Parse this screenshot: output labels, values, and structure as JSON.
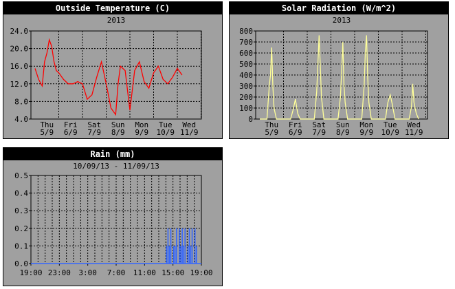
{
  "chart_data": [
    {
      "type": "line",
      "title": "Outside Temperature (C)",
      "subtitle": "2013",
      "ylim": [
        4.0,
        24.0
      ],
      "yticks": [
        "4.0",
        "8.0",
        "12.0",
        "16.0",
        "20.0",
        "24.0"
      ],
      "xticks": [
        {
          "day": "Thu",
          "date": "5/9"
        },
        {
          "day": "Fri",
          "date": "6/9"
        },
        {
          "day": "Sat",
          "date": "7/9"
        },
        {
          "day": "Sun",
          "date": "8/9"
        },
        {
          "day": "Mon",
          "date": "9/9"
        },
        {
          "day": "Tue",
          "date": "10/9"
        },
        {
          "day": "Wed",
          "date": "11/9"
        }
      ],
      "grid": true,
      "line_color": "#ff0000",
      "x": [
        0,
        0.15,
        0.3,
        0.4,
        0.5,
        0.6,
        0.7,
        0.8,
        0.9,
        1.0,
        1.2,
        1.4,
        1.6,
        1.8,
        2.0,
        2.2,
        2.4,
        2.6,
        2.8,
        3.0,
        3.2,
        3.4,
        3.5,
        3.6,
        3.8,
        4.0,
        4.2,
        4.4,
        4.6,
        4.8,
        5.0,
        5.2,
        5.4,
        5.6,
        5.8,
        6.0,
        6.2
      ],
      "values": [
        15.5,
        13.0,
        11.5,
        17.0,
        19.0,
        22.0,
        20.5,
        17.0,
        15.0,
        14.5,
        13.0,
        12.0,
        12.0,
        12.5,
        12.0,
        8.5,
        9.5,
        13.5,
        17.0,
        12.0,
        6.5,
        5.0,
        12.0,
        16.0,
        15.0,
        6.0,
        15.0,
        17.0,
        12.5,
        11.0,
        14.5,
        16.0,
        13.0,
        12.0,
        13.5,
        15.5,
        14.0
      ]
    },
    {
      "type": "line",
      "title": "Solar Radiation (W/m^2)",
      "subtitle": "2013",
      "ylim": [
        0,
        800
      ],
      "yticks": [
        "0",
        "100",
        "200",
        "300",
        "400",
        "500",
        "600",
        "700",
        "800"
      ],
      "xticks": [
        {
          "day": "Thu",
          "date": "5/9"
        },
        {
          "day": "Fri",
          "date": "6/9"
        },
        {
          "day": "Sat",
          "date": "7/9"
        },
        {
          "day": "Sun",
          "date": "8/9"
        },
        {
          "day": "Mon",
          "date": "9/9"
        },
        {
          "day": "Tue",
          "date": "10/9"
        },
        {
          "day": "Wed",
          "date": "11/9"
        }
      ],
      "grid": true,
      "line_color": "#ffff99",
      "x": [
        0,
        0.15,
        0.3,
        0.35,
        0.4,
        0.45,
        0.5,
        0.55,
        0.6,
        0.7,
        0.85,
        1.0,
        1.15,
        1.3,
        1.4,
        1.5,
        1.6,
        1.7,
        1.85,
        2.0,
        2.15,
        2.3,
        2.4,
        2.45,
        2.5,
        2.55,
        2.6,
        2.7,
        2.85,
        3.0,
        3.15,
        3.3,
        3.4,
        3.45,
        3.5,
        3.55,
        3.6,
        3.7,
        3.85,
        4.0,
        4.15,
        4.3,
        4.4,
        4.45,
        4.5,
        4.55,
        4.6,
        4.7,
        4.85,
        5.0,
        5.15,
        5.3,
        5.4,
        5.5,
        5.6,
        5.7,
        5.85,
        6.0,
        6.15,
        6.3,
        6.4,
        6.45,
        6.5,
        6.6,
        6.7
      ],
      "values": [
        0,
        0,
        0,
        150,
        300,
        400,
        650,
        300,
        100,
        0,
        0,
        0,
        0,
        0,
        80,
        180,
        50,
        0,
        0,
        0,
        0,
        0,
        250,
        500,
        760,
        480,
        200,
        0,
        0,
        0,
        0,
        0,
        200,
        420,
        700,
        300,
        150,
        0,
        0,
        0,
        0,
        0,
        300,
        600,
        760,
        380,
        150,
        0,
        0,
        0,
        0,
        0,
        150,
        220,
        120,
        0,
        0,
        0,
        0,
        0,
        120,
        320,
        150,
        50,
        0
      ]
    },
    {
      "type": "bar",
      "title": "Rain (mm)",
      "subtitle": "10/09/13 - 11/09/13",
      "ylim": [
        0.0,
        0.5
      ],
      "yticks": [
        "0.0",
        "0.1",
        "0.2",
        "0.3",
        "0.4",
        "0.5"
      ],
      "xlim": [
        0,
        24
      ],
      "xticks": [
        "19:00",
        "23:00",
        "3:00",
        "7:00",
        "11:00",
        "15:00",
        "19:00"
      ],
      "grid": true,
      "bar_color": "#3366ff",
      "x": [
        19.1,
        19.3,
        19.5,
        19.7,
        19.9,
        20.1,
        20.3,
        20.5,
        20.7,
        20.9,
        21.1,
        21.3,
        21.5,
        21.7,
        21.9,
        22.1,
        22.3,
        22.5,
        22.7,
        22.9,
        23.1,
        23.3
      ],
      "values": [
        0.1,
        0.2,
        0.1,
        0.2,
        0.0,
        0.1,
        0.1,
        0.2,
        0.0,
        0.2,
        0.1,
        0.2,
        0.1,
        0.2,
        0.0,
        0.1,
        0.2,
        0.1,
        0.2,
        0.0,
        0.2,
        0.1
      ]
    }
  ]
}
